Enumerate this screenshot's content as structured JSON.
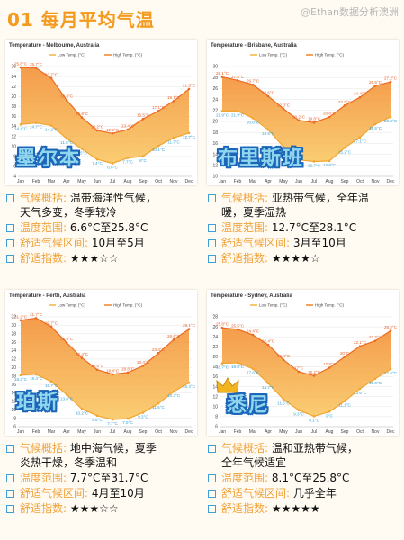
{
  "header": {
    "title": "01 每月平均气温",
    "watermark": "@Ethan数据分析澳洲"
  },
  "colors": {
    "high": "#f0822a",
    "low": "#f4b53f",
    "accent": "#f39a1f",
    "label": "#f0a23a",
    "bullet": "#3f9fd9"
  },
  "chart_data": [
    {
      "type": "line",
      "title": "Temperature - Melbourne, Australia",
      "legend": [
        "Low Temp. (°C)",
        "High Temp. (°C)"
      ],
      "categories": [
        "Jan",
        "Feb",
        "Mar",
        "Apr",
        "May",
        "Jun",
        "Jul",
        "Aug",
        "Sep",
        "Oct",
        "Nov",
        "Dec"
      ],
      "yticks": [
        4,
        6,
        8,
        10,
        12,
        14,
        16,
        18,
        20,
        22,
        24,
        26
      ],
      "ylim": [
        4,
        26
      ],
      "series": [
        {
          "name": "High Temp. (°C)",
          "values": [
            25.8,
            25.7,
            23.7,
            19.3,
            15.8,
            13.2,
            12.6,
            13.4,
            15.5,
            17.1,
            19.1,
            21.5
          ]
        },
        {
          "name": "Low Temp. (°C)",
          "values": [
            14.4,
            14.7,
            14.2,
            11.6,
            9.5,
            7.4,
            6.6,
            7.7,
            8.0,
            10.1,
            11.7,
            12.7
          ]
        }
      ],
      "high_labels": [
        "25.8°C",
        "25.7°C",
        "23.7°C",
        "19.3°C",
        "15.8°C",
        "13.2°C",
        "12.6°C",
        "13.4°C",
        "15.5°C",
        "17.1°C",
        "19.1°C",
        "21.5°C"
      ],
      "low_labels": [
        "14.4°C",
        "14.7°C",
        "14.2°C",
        "11.6°C",
        "9.5°C",
        "7.4°C",
        "6.6°C",
        "7.7°C",
        "8°C",
        "10.1°C",
        "11.7°C",
        "12.7°C"
      ],
      "label_colors": {
        "high": "#e8632b",
        "low": "#3aa3d8"
      }
    },
    {
      "type": "line",
      "title": "Temperature - Brisbane, Australia",
      "legend": [
        "Low Temp. (°C)",
        "High Temp. (°C)"
      ],
      "categories": [
        "Jan",
        "Feb",
        "Mar",
        "Apr",
        "May",
        "Jun",
        "Jul",
        "Aug",
        "Sep",
        "Oct",
        "Nov",
        "Dec"
      ],
      "yticks": [
        10,
        12,
        14,
        16,
        18,
        20,
        22,
        24,
        26,
        28,
        30
      ],
      "ylim": [
        10,
        30
      ],
      "series": [
        {
          "name": "High Temp. (°C)",
          "values": [
            28.1,
            27.5,
            26.7,
            24.6,
            22.3,
            20.2,
            19.8,
            20.8,
            22.9,
            24.4,
            26.5,
            27.2
          ]
        },
        {
          "name": "Low Temp. (°C)",
          "values": [
            21.9,
            21.9,
            20.6,
            18.5,
            15.4,
            13.0,
            12.7,
            12.8,
            15.2,
            17.1,
            19.5,
            20.8
          ]
        }
      ],
      "high_labels": [
        "28.1°C",
        "27.5°C",
        "26.7°C",
        "24.6°C",
        "22.3°C",
        "20.2°C",
        "19.8°C",
        "20.8°C",
        "22.9°C",
        "24.4°C",
        "26.5°C",
        "27.2°C"
      ],
      "low_labels": [
        "21.9°C",
        "21.9°C",
        "20.6°C",
        "18.5°C",
        "15.4°C",
        "13°C",
        "12.7°C",
        "12.8°C",
        "15.2°C",
        "17.1°C",
        "19.5°C",
        "20.8°C"
      ],
      "label_colors": {
        "high": "#e8632b",
        "low": "#3aa3d8"
      }
    },
    {
      "type": "line",
      "title": "Temperature - Perth, Australia",
      "legend": [
        "Low Temp. (°C)",
        "High Temp. (°C)"
      ],
      "categories": [
        "Jan",
        "Feb",
        "Mar",
        "Apr",
        "May",
        "Jun",
        "Jul",
        "Aug",
        "Sep",
        "Oct",
        "Nov",
        "Dec"
      ],
      "yticks": [
        6,
        8,
        10,
        12,
        14,
        16,
        18,
        20,
        22,
        24,
        26,
        28,
        30,
        32
      ],
      "ylim": [
        6,
        32
      ],
      "series": [
        {
          "name": "High Temp. (°C)",
          "values": [
            31.2,
            31.7,
            29.7,
            25.9,
            22.3,
            19.5,
            18.4,
            18.8,
            20.4,
            23.4,
            26.6,
            29.1
          ]
        },
        {
          "name": "Low Temp. (°C)",
          "values": [
            18.2,
            18.4,
            16.7,
            13.6,
            10.2,
            8.6,
            7.7,
            7.9,
            9.3,
            11.5,
            14.3,
            16.4
          ]
        }
      ],
      "high_labels": [
        "31.2°C",
        "31.7°C",
        "29.7°C",
        "25.9°C",
        "22.3°C",
        "19.5°C",
        "18.4°C",
        "18.8°C",
        "20.4°C",
        "23.4°C",
        "26.6°C",
        "29.1°C"
      ],
      "low_labels": [
        "18.2°C",
        "18.4°C",
        "16.7°C",
        "13.6°C",
        "10.2°C",
        "8.6°C",
        "7.7°C",
        "7.9°C",
        "9.3°C",
        "11.5°C",
        "14.3°C",
        "16.4°C"
      ],
      "label_colors": {
        "high": "#e8632b",
        "low": "#3aa3d8"
      }
    },
    {
      "type": "line",
      "title": "Temperature - Sydney, Australia",
      "legend": [
        "Low Temp. (°C)",
        "High Temp. (°C)"
      ],
      "categories": [
        "Jan",
        "Feb",
        "Mar",
        "Apr",
        "May",
        "Jun",
        "Jul",
        "Aug",
        "Sep",
        "Oct",
        "Nov",
        "Dec"
      ],
      "yticks": [
        6,
        8,
        10,
        12,
        14,
        16,
        18,
        20,
        22,
        24,
        26,
        28
      ],
      "ylim": [
        6,
        28
      ],
      "series": [
        {
          "name": "High Temp. (°C)",
          "values": [
            25.8,
            25.5,
            24.4,
            22.4,
            19.4,
            17.0,
            16.2,
            17.8,
            20.0,
            22.1,
            23.2,
            25.2
          ]
        },
        {
          "name": "Low Temp. (°C)",
          "values": [
            18.7,
            18.8,
            17.6,
            14.7,
            11.5,
            9.3,
            8.1,
            9.0,
            11.1,
            13.6,
            15.6,
            17.5
          ]
        }
      ],
      "high_labels": [
        "25.8°C",
        "25.5°C",
        "24.4°C",
        "22.4°C",
        "19.4°C",
        "17°C",
        "16.2°C",
        "17.8°C",
        "20°C",
        "22.1°C",
        "23.2°C",
        "25.2°C"
      ],
      "low_labels": [
        "18.7°C",
        "18.8°C",
        "17.6°C",
        "14.7°C",
        "11.5°C",
        "9.3°C",
        "8.1°C",
        "9°C",
        "11.1°C",
        "13.6°C",
        "15.6°C",
        "17.5°C"
      ],
      "label_colors": {
        "high": "#e8632b",
        "low": "#3aa3d8"
      }
    }
  ],
  "cities": [
    {
      "name": "墨尔本",
      "climate_label": "气候概括:",
      "climate_text": "温带海洋性气候，",
      "climate_text2": "天气多变，冬季较冷",
      "range_label": "温度范围:",
      "range_text": "6.6°C至25.8°C",
      "comfort_label": "舒适气候区间:",
      "comfort_text": "10月至5月",
      "index_label": "舒适指数:",
      "stars": "★★★☆☆"
    },
    {
      "name": "布里斯班",
      "climate_label": "气候概括:",
      "climate_text": "亚热带气候，全年温",
      "climate_text2": "暖，夏季湿热",
      "range_label": "温度范围:",
      "range_text": "12.7°C至28.1°C",
      "comfort_label": "舒适气候区间:",
      "comfort_text": "3月至10月",
      "index_label": "舒适指数:",
      "stars": "★★★★☆"
    },
    {
      "name": "珀斯",
      "climate_label": "气候概括:",
      "climate_text": "地中海气候，夏季",
      "climate_text2": "炎热干燥，冬季温和",
      "range_label": "温度范围:",
      "range_text": "7.7°C至31.7°C",
      "comfort_label": "舒适气候区间:",
      "comfort_text": "4月至10月",
      "index_label": "舒适指数:",
      "stars": "★★★☆☆"
    },
    {
      "name": "悉尼",
      "climate_label": "气候概括:",
      "climate_text": "温和亚热带气候，",
      "climate_text2": "全年气候适宜",
      "range_label": "温度范围:",
      "range_text": "8.1°C至25.8°C",
      "comfort_label": "舒适气候区间:",
      "comfort_text": "几乎全年",
      "index_label": "舒适指数:",
      "stars": "★★★★★"
    }
  ]
}
